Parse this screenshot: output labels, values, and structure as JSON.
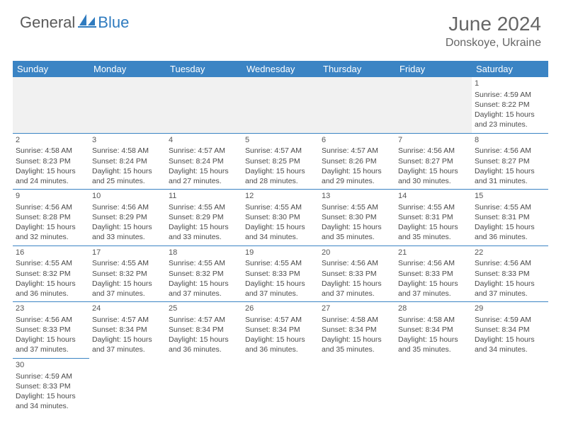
{
  "logo": {
    "general": "General",
    "blue": "Blue"
  },
  "header": {
    "title": "June 2024",
    "location": "Donskoye, Ukraine"
  },
  "colors": {
    "header_bg": "#3b84c4",
    "header_text": "#ffffff",
    "rule": "#3b84c4",
    "text": "#4a4a4a",
    "empty_bg": "#f1f1f1"
  },
  "dayNames": [
    "Sunday",
    "Monday",
    "Tuesday",
    "Wednesday",
    "Thursday",
    "Friday",
    "Saturday"
  ],
  "startWeekday": 6,
  "daysInMonth": 30,
  "days": {
    "1": {
      "sr": "4:59 AM",
      "ss": "8:22 PM",
      "dl": "15 hours and 23 minutes."
    },
    "2": {
      "sr": "4:58 AM",
      "ss": "8:23 PM",
      "dl": "15 hours and 24 minutes."
    },
    "3": {
      "sr": "4:58 AM",
      "ss": "8:24 PM",
      "dl": "15 hours and 25 minutes."
    },
    "4": {
      "sr": "4:57 AM",
      "ss": "8:24 PM",
      "dl": "15 hours and 27 minutes."
    },
    "5": {
      "sr": "4:57 AM",
      "ss": "8:25 PM",
      "dl": "15 hours and 28 minutes."
    },
    "6": {
      "sr": "4:57 AM",
      "ss": "8:26 PM",
      "dl": "15 hours and 29 minutes."
    },
    "7": {
      "sr": "4:56 AM",
      "ss": "8:27 PM",
      "dl": "15 hours and 30 minutes."
    },
    "8": {
      "sr": "4:56 AM",
      "ss": "8:27 PM",
      "dl": "15 hours and 31 minutes."
    },
    "9": {
      "sr": "4:56 AM",
      "ss": "8:28 PM",
      "dl": "15 hours and 32 minutes."
    },
    "10": {
      "sr": "4:56 AM",
      "ss": "8:29 PM",
      "dl": "15 hours and 33 minutes."
    },
    "11": {
      "sr": "4:55 AM",
      "ss": "8:29 PM",
      "dl": "15 hours and 33 minutes."
    },
    "12": {
      "sr": "4:55 AM",
      "ss": "8:30 PM",
      "dl": "15 hours and 34 minutes."
    },
    "13": {
      "sr": "4:55 AM",
      "ss": "8:30 PM",
      "dl": "15 hours and 35 minutes."
    },
    "14": {
      "sr": "4:55 AM",
      "ss": "8:31 PM",
      "dl": "15 hours and 35 minutes."
    },
    "15": {
      "sr": "4:55 AM",
      "ss": "8:31 PM",
      "dl": "15 hours and 36 minutes."
    },
    "16": {
      "sr": "4:55 AM",
      "ss": "8:32 PM",
      "dl": "15 hours and 36 minutes."
    },
    "17": {
      "sr": "4:55 AM",
      "ss": "8:32 PM",
      "dl": "15 hours and 37 minutes."
    },
    "18": {
      "sr": "4:55 AM",
      "ss": "8:32 PM",
      "dl": "15 hours and 37 minutes."
    },
    "19": {
      "sr": "4:55 AM",
      "ss": "8:33 PM",
      "dl": "15 hours and 37 minutes."
    },
    "20": {
      "sr": "4:56 AM",
      "ss": "8:33 PM",
      "dl": "15 hours and 37 minutes."
    },
    "21": {
      "sr": "4:56 AM",
      "ss": "8:33 PM",
      "dl": "15 hours and 37 minutes."
    },
    "22": {
      "sr": "4:56 AM",
      "ss": "8:33 PM",
      "dl": "15 hours and 37 minutes."
    },
    "23": {
      "sr": "4:56 AM",
      "ss": "8:33 PM",
      "dl": "15 hours and 37 minutes."
    },
    "24": {
      "sr": "4:57 AM",
      "ss": "8:34 PM",
      "dl": "15 hours and 37 minutes."
    },
    "25": {
      "sr": "4:57 AM",
      "ss": "8:34 PM",
      "dl": "15 hours and 36 minutes."
    },
    "26": {
      "sr": "4:57 AM",
      "ss": "8:34 PM",
      "dl": "15 hours and 36 minutes."
    },
    "27": {
      "sr": "4:58 AM",
      "ss": "8:34 PM",
      "dl": "15 hours and 35 minutes."
    },
    "28": {
      "sr": "4:58 AM",
      "ss": "8:34 PM",
      "dl": "15 hours and 35 minutes."
    },
    "29": {
      "sr": "4:59 AM",
      "ss": "8:34 PM",
      "dl": "15 hours and 34 minutes."
    },
    "30": {
      "sr": "4:59 AM",
      "ss": "8:33 PM",
      "dl": "15 hours and 34 minutes."
    }
  },
  "labels": {
    "sunrise": "Sunrise:",
    "sunset": "Sunset:",
    "daylight": "Daylight:"
  }
}
